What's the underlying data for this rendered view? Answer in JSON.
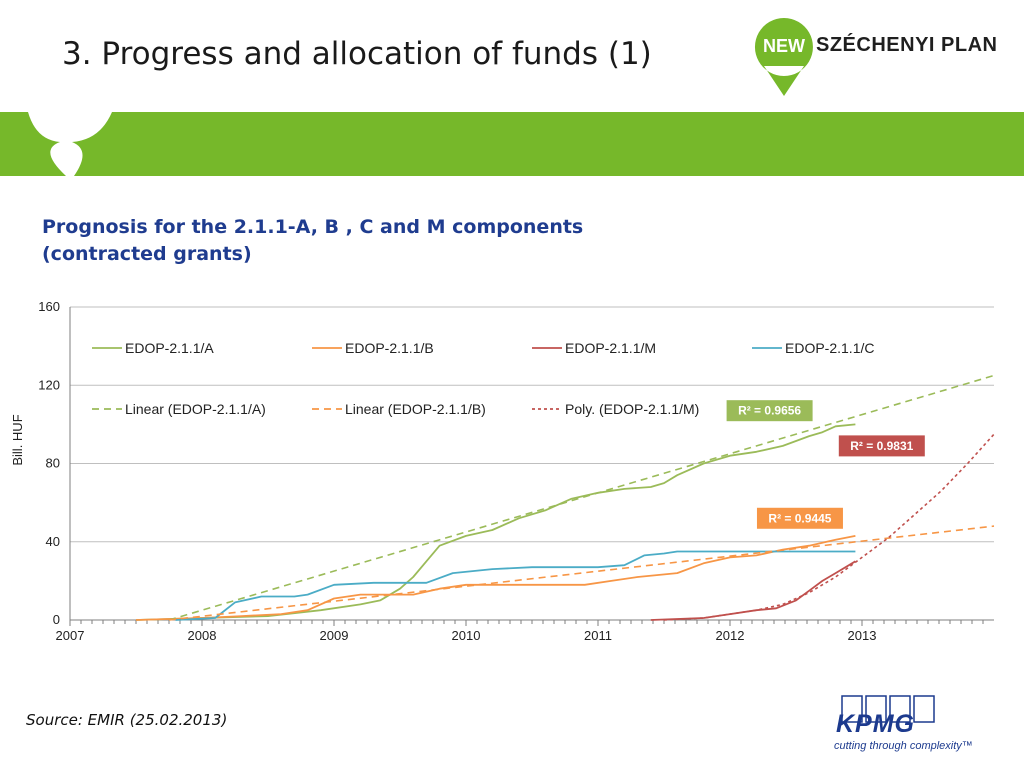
{
  "slide": {
    "title": "3. Progress and allocation of funds (1)",
    "subtitle_line1": "Prognosis for the 2.1.1-A, B , C and M components",
    "subtitle_line2": "(contracted grants)",
    "source": "Source: EMIR (25.02.2013)"
  },
  "logo": {
    "badge": "NEW",
    "text": "SZÉCHENYI PLAN"
  },
  "kpmg": {
    "name": "KPMG",
    "tagline": "cutting through complexity™"
  },
  "colors": {
    "banner": "#76b82a",
    "series_a": "#9bbb59",
    "series_b": "#f79646",
    "series_m": "#c0504d",
    "series_c": "#4bacc6",
    "kpmg_blue": "#1c3a8e"
  },
  "chart_data": {
    "type": "line",
    "title": "",
    "ylabel": "Bill. HUF",
    "xlabel": "",
    "xlim": [
      2007,
      2014
    ],
    "ylim": [
      0,
      160
    ],
    "xticks": [
      "2007",
      "2008",
      "2009",
      "2010",
      "2011",
      "2012",
      "2013"
    ],
    "yticks": [
      "0",
      "40",
      "80",
      "120",
      "160"
    ],
    "grid": "horizontal",
    "legend_position": "top",
    "series": [
      {
        "name": "EDOP-2.1.1/A",
        "color": "#9bbb59",
        "style": "solid",
        "x": [
          2007.5,
          2008.0,
          2008.5,
          2008.9,
          2009.2,
          2009.35,
          2009.5,
          2009.6,
          2009.7,
          2009.8,
          2010.0,
          2010.2,
          2010.4,
          2010.6,
          2010.8,
          2011.0,
          2011.2,
          2011.4,
          2011.5,
          2011.6,
          2011.8,
          2012.0,
          2012.2,
          2012.4,
          2012.6,
          2012.7,
          2012.8,
          2012.95
        ],
        "y": [
          0,
          1,
          2,
          5,
          8,
          10,
          16,
          22,
          30,
          38,
          43,
          46,
          52,
          56,
          62,
          65,
          67,
          68,
          70,
          74,
          80,
          84,
          86,
          89,
          94,
          96,
          99,
          100
        ]
      },
      {
        "name": "EDOP-2.1.1/B",
        "color": "#f79646",
        "style": "solid",
        "x": [
          2007.5,
          2008.0,
          2008.3,
          2008.6,
          2008.8,
          2009.0,
          2009.2,
          2009.4,
          2009.6,
          2009.8,
          2010.0,
          2010.5,
          2010.9,
          2011.1,
          2011.3,
          2011.6,
          2011.8,
          2012.0,
          2012.2,
          2012.4,
          2012.6,
          2012.8,
          2012.95
        ],
        "y": [
          0,
          1,
          2,
          3,
          5,
          11,
          13,
          13,
          13,
          16,
          18,
          18,
          18,
          20,
          22,
          24,
          29,
          32,
          33,
          36,
          38,
          41,
          43
        ]
      },
      {
        "name": "EDOP-2.1.1/M",
        "color": "#c0504d",
        "style": "solid",
        "x": [
          2011.4,
          2011.6,
          2011.8,
          2012.0,
          2012.2,
          2012.35,
          2012.5,
          2012.6,
          2012.7,
          2012.8,
          2012.95
        ],
        "y": [
          0,
          0.5,
          1,
          3,
          5,
          6,
          10,
          15,
          20,
          24,
          30
        ]
      },
      {
        "name": "EDOP-2.1.1/C",
        "color": "#4bacc6",
        "style": "solid",
        "x": [
          2007.8,
          2008.1,
          2008.25,
          2008.45,
          2008.7,
          2008.8,
          2009.0,
          2009.3,
          2009.5,
          2009.7,
          2009.9,
          2010.2,
          2010.5,
          2010.8,
          2011.0,
          2011.2,
          2011.35,
          2011.5,
          2011.6,
          2011.9,
          2012.2,
          2012.5,
          2012.95
        ],
        "y": [
          0,
          1,
          9,
          12,
          12,
          13,
          18,
          19,
          19,
          19,
          24,
          26,
          27,
          27,
          27,
          28,
          33,
          34,
          35,
          35,
          35,
          35,
          35
        ]
      },
      {
        "name": "Linear (EDOP-2.1.1/A)",
        "color": "#9bbb59",
        "style": "dashed",
        "x": [
          2007.75,
          2014.0
        ],
        "y": [
          0,
          125
        ]
      },
      {
        "name": "Linear (EDOP-2.1.1/B)",
        "color": "#f79646",
        "style": "dashed",
        "x": [
          2007.75,
          2014.0
        ],
        "y": [
          0,
          48
        ]
      },
      {
        "name": "Poly. (EDOP-2.1.1/M)",
        "color": "#c0504d",
        "style": "dotted",
        "x": [
          2011.5,
          2011.8,
          2012.0,
          2012.2,
          2012.4,
          2012.6,
          2012.8,
          2013.0,
          2013.2,
          2013.4,
          2013.6,
          2013.8,
          2014.0
        ],
        "y": [
          0,
          1,
          3,
          5,
          8,
          14,
          22,
          32,
          42,
          54,
          66,
          80,
          95
        ]
      }
    ],
    "annotations": [
      {
        "text": "R² = 0.9656",
        "color": "#9bbb59",
        "x": 2012.3,
        "y": 107
      },
      {
        "text": "R² = 0.9831",
        "color": "#c0504d",
        "x": 2013.15,
        "y": 89
      },
      {
        "text": "R² = 0.9445",
        "color": "#f79646",
        "x": 2012.53,
        "y": 52
      }
    ]
  }
}
